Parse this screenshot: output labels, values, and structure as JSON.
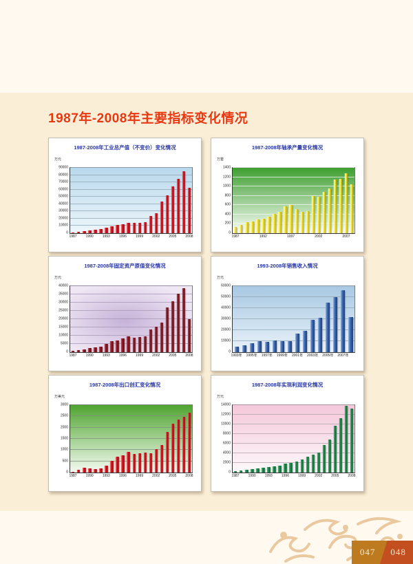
{
  "page": {
    "title": "1987年-2008年主要指标变化情况",
    "title_color": "#E8380D",
    "background": "#FFF9EF",
    "band_background": "#FBEED7",
    "decoration_color": "#EAC9A0",
    "footer": {
      "left_page": "047",
      "right_page": "048",
      "left_bg": "#BE7A1E",
      "right_bg": "#C34E20",
      "text_color": "#F5E9CE"
    }
  },
  "chart_data": [
    {
      "type": "bar",
      "title": "1987-2008年工业总产值（不变价）变化情况",
      "ylabel": "万元",
      "categories": [
        "1987",
        "1988",
        "1989",
        "1990",
        "1991",
        "1992",
        "1993",
        "1994",
        "1995",
        "1996",
        "1997",
        "1998",
        "1999",
        "2000",
        "2001",
        "2002",
        "2003",
        "2004",
        "2005",
        "2006",
        "2007",
        "2008"
      ],
      "values": [
        1400,
        2200,
        2800,
        4100,
        5200,
        6000,
        7400,
        9400,
        11800,
        12700,
        13800,
        14000,
        13900,
        15400,
        24000,
        27800,
        43500,
        52000,
        64500,
        75000,
        85500,
        62500
      ],
      "ylim": [
        0,
        90000
      ],
      "ytick_step": 10000,
      "xticks": [
        {
          "label": "1987",
          "index": 0
        },
        {
          "label": "1990",
          "index": 3
        },
        {
          "label": "1993",
          "index": 6
        },
        {
          "label": "1996",
          "index": 9
        },
        {
          "label": "1999",
          "index": 12
        },
        {
          "label": "2002",
          "index": 15
        },
        {
          "label": "2005",
          "index": 18
        },
        {
          "label": "2008",
          "index": 21
        }
      ],
      "grid": "on",
      "style": {
        "bar_light": "#F28A80",
        "bar_color": "#DB1220",
        "bar_dark": "#8C0310",
        "bg_type": "linear",
        "bg_from": "#B9D8EC",
        "bg_to": "#EDF6FB",
        "grid_color": "#8FA6B4"
      }
    },
    {
      "type": "bar",
      "title": "1987-2008年轴承产量变化情况",
      "ylabel": "万套",
      "categories": [
        "1987",
        "1988",
        "1989",
        "1990",
        "1991",
        "1992",
        "1993",
        "1994",
        "1995",
        "1996",
        "1997",
        "1998",
        "1999",
        "2000",
        "2001",
        "2002",
        "2003",
        "2004",
        "2005",
        "2006",
        "2007",
        "2008"
      ],
      "values": [
        135,
        170,
        240,
        255,
        295,
        310,
        360,
        410,
        460,
        570,
        610,
        510,
        455,
        470,
        795,
        780,
        890,
        965,
        1145,
        1165,
        1285,
        1045
      ],
      "ylim": [
        0,
        1400
      ],
      "ytick_step": 200,
      "xticks": [
        {
          "label": "1987",
          "index": 0
        },
        {
          "label": "1992",
          "index": 5
        },
        {
          "label": "1997",
          "index": 10
        },
        {
          "label": "2002",
          "index": 15
        },
        {
          "label": "2007",
          "index": 20
        }
      ],
      "grid": "on",
      "style": {
        "bar_light": "#FFFCC0",
        "bar_color": "#FFF04E",
        "bar_dark": "#B8A400",
        "bg_type": "linear",
        "bg_from": "#3E9E30",
        "bg_to": "#FBFDF9",
        "grid_color": "#F4F8F4"
      }
    },
    {
      "type": "bar",
      "title": "1987-2008年固定资产原值变化情况",
      "ylabel": "万元",
      "categories": [
        "1987",
        "1988",
        "1989",
        "1990",
        "1991",
        "1992",
        "1993",
        "1994",
        "1995",
        "1996",
        "1997",
        "1998",
        "1999",
        "2000",
        "2001",
        "2002",
        "2003",
        "2004",
        "2005",
        "2006",
        "2007",
        "2008"
      ],
      "values": [
        1000,
        1400,
        1800,
        2300,
        2800,
        3400,
        5100,
        6500,
        7000,
        8200,
        9700,
        8900,
        9300,
        9600,
        13900,
        15400,
        18000,
        27000,
        31000,
        35500,
        38800,
        20000
      ],
      "ylim": [
        0,
        40000
      ],
      "ytick_step": 5000,
      "xticks": [
        {
          "label": "1987",
          "index": 0
        },
        {
          "label": "1990",
          "index": 3
        },
        {
          "label": "1993",
          "index": 6
        },
        {
          "label": "1996",
          "index": 9
        },
        {
          "label": "1999",
          "index": 12
        },
        {
          "label": "2002",
          "index": 15
        },
        {
          "label": "2005",
          "index": 18
        },
        {
          "label": "2008",
          "index": 21
        }
      ],
      "grid": "on",
      "style": {
        "bar_light": "#B25560",
        "bar_color": "#8E1B28",
        "bar_dark": "#520610",
        "bg_type": "radial",
        "bg_from": "#C6B2D8",
        "bg_to": "#EFE7F4",
        "grid_color": "#A596B4"
      }
    },
    {
      "type": "bar",
      "title": "1993-2008年销售收入情况",
      "ylabel": "万元",
      "categories": [
        "1993年",
        "1994年",
        "1995年",
        "1996年",
        "1997年",
        "1998年",
        "1999年",
        "2000年",
        "2001年",
        "2002年",
        "2003年",
        "2004年",
        "2005年",
        "2006年",
        "2007年",
        "2008年"
      ],
      "values": [
        5000,
        6000,
        8200,
        10200,
        9100,
        10800,
        10200,
        10200,
        16600,
        19200,
        29600,
        31200,
        45200,
        50000,
        56200,
        31800
      ],
      "ylim": [
        0,
        60000
      ],
      "ytick_step": 10000,
      "xticks": [
        {
          "label": "1993年",
          "index": 0
        },
        {
          "label": "1995年",
          "index": 2
        },
        {
          "label": "1997年",
          "index": 4
        },
        {
          "label": "1999年",
          "index": 6
        },
        {
          "label": "2001年",
          "index": 8
        },
        {
          "label": "2003年",
          "index": 10
        },
        {
          "label": "2005年",
          "index": 12
        },
        {
          "label": "2007年",
          "index": 14
        }
      ],
      "grid": "on",
      "style": {
        "bar_light": "#9AB6DE",
        "bar_color": "#3E6CB6",
        "bar_dark": "#1C3A74",
        "bg_type": "linear",
        "bg_from": "#A8C8E2",
        "bg_to": "#E9F2F9",
        "grid_color": "#8FA6B4"
      }
    },
    {
      "type": "bar",
      "title": "1987-2008年出口创汇变化情况",
      "ylabel": "万美元",
      "categories": [
        "1987",
        "1988",
        "1989",
        "1990",
        "1991",
        "1992",
        "1993",
        "1994",
        "1995",
        "1996",
        "1997",
        "1998",
        "1999",
        "2000",
        "2001",
        "2002",
        "2003",
        "2004",
        "2005",
        "2006",
        "2007",
        "2008"
      ],
      "values": [
        40,
        120,
        200,
        185,
        165,
        185,
        295,
        530,
        715,
        765,
        915,
        835,
        865,
        885,
        870,
        1030,
        1210,
        1810,
        2180,
        2350,
        2480,
        2660
      ],
      "ylim": [
        0,
        3000
      ],
      "ytick_step": 500,
      "xticks": [
        {
          "label": "1987",
          "index": 0
        },
        {
          "label": "1990",
          "index": 3
        },
        {
          "label": "1993",
          "index": 6
        },
        {
          "label": "1996",
          "index": 9
        },
        {
          "label": "1999",
          "index": 12
        },
        {
          "label": "2002",
          "index": 15
        },
        {
          "label": "2005",
          "index": 18
        },
        {
          "label": "2008",
          "index": 21
        }
      ],
      "grid": "on",
      "style": {
        "bar_light": "#F28A80",
        "bar_color": "#DB1220",
        "bar_dark": "#8C0310",
        "bg_type": "linear",
        "bg_from": "#4FA430",
        "bg_to": "#F6FBF3",
        "grid_color": "#7C8C7C"
      }
    },
    {
      "type": "bar",
      "title": "1987-2008年实现利润变化情况",
      "ylabel": "万元",
      "categories": [
        "1987",
        "1988",
        "1989",
        "1990",
        "1991",
        "1992",
        "1993",
        "1994",
        "1995",
        "1996",
        "1997",
        "1998",
        "1999",
        "2000",
        "2001",
        "2002",
        "2003",
        "2004",
        "2005",
        "2006",
        "2007",
        "2008"
      ],
      "values": [
        300,
        500,
        590,
        680,
        810,
        990,
        1130,
        1220,
        1490,
        1800,
        2030,
        2340,
        2660,
        3280,
        3690,
        4090,
        5760,
        6880,
        9710,
        11240,
        13800,
        13300
      ],
      "ylim": [
        0,
        14000
      ],
      "ytick_step": 2000,
      "xticks": [
        {
          "label": "1987",
          "index": 0
        },
        {
          "label": "1990",
          "index": 3
        },
        {
          "label": "1993",
          "index": 6
        },
        {
          "label": "1996",
          "index": 9
        },
        {
          "label": "1999",
          "index": 12
        },
        {
          "label": "2002",
          "index": 15
        },
        {
          "label": "2005",
          "index": 18
        },
        {
          "label": "2008",
          "index": 21
        }
      ],
      "grid": "on",
      "style": {
        "bar_light": "#66B586",
        "bar_color": "#1F8A4A",
        "bar_dark": "#0B5930",
        "bg_type": "linear",
        "bg_from": "#F4C8DA",
        "bg_to": "#FDF8FA",
        "grid_color": "#B0A0A8"
      }
    }
  ]
}
